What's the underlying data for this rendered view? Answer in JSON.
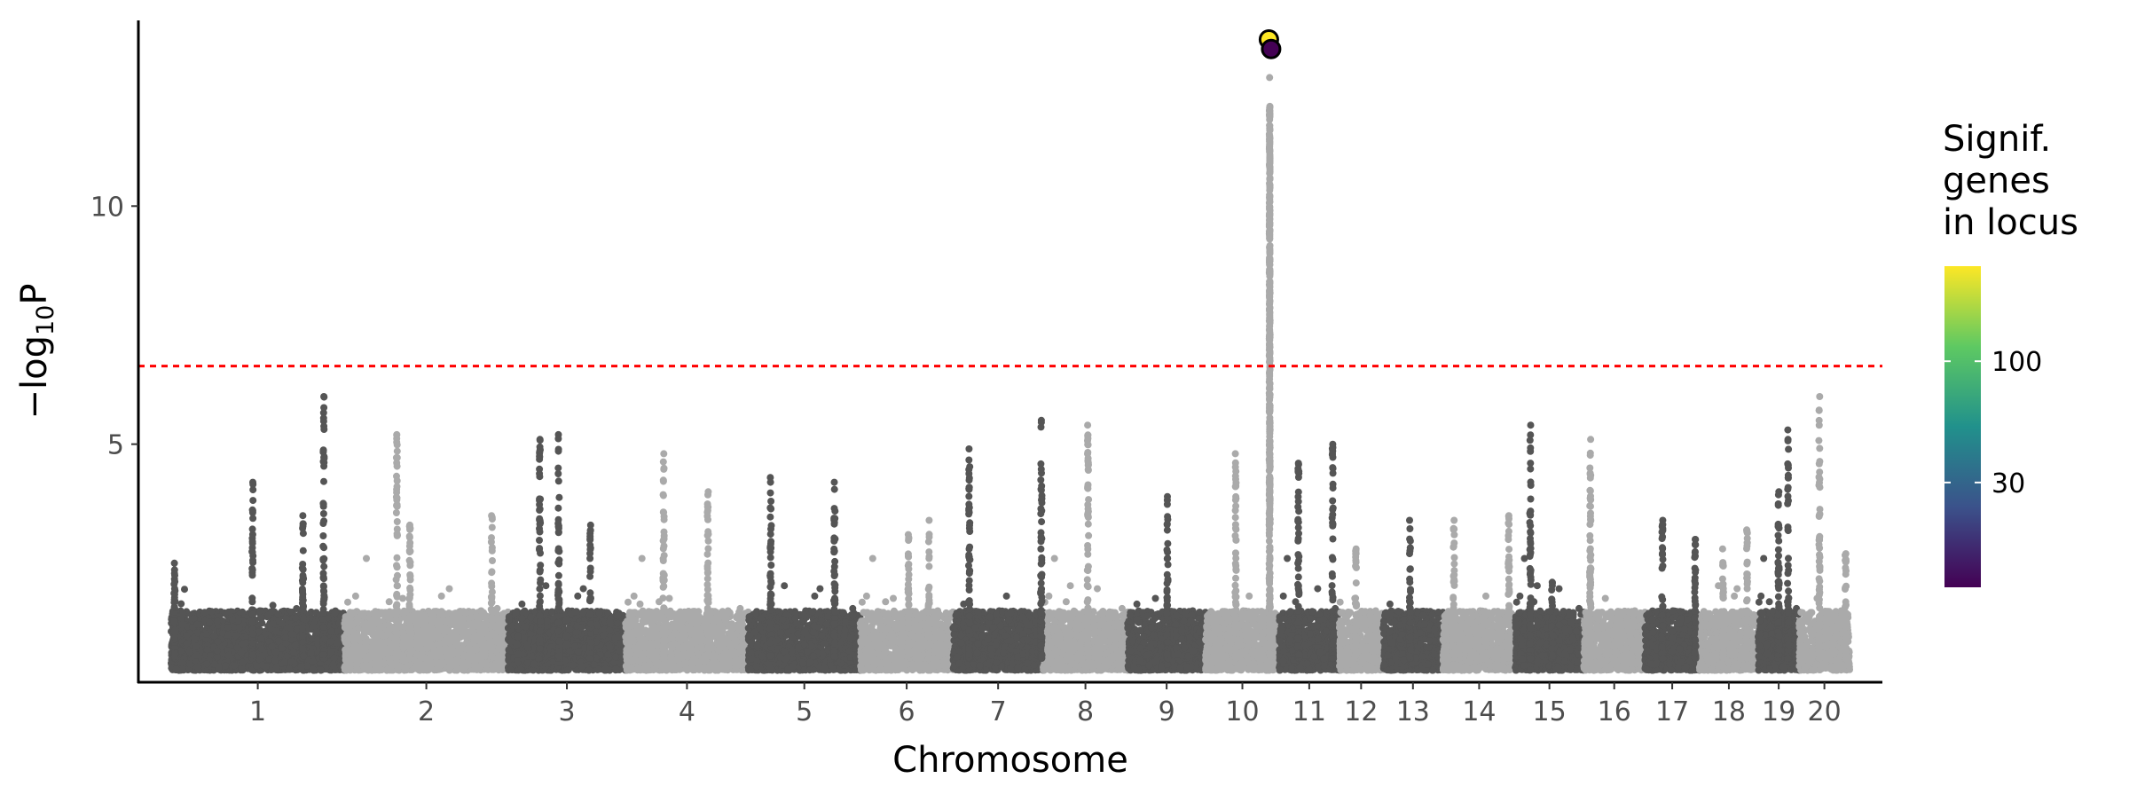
{
  "chart_data": {
    "type": "scatter",
    "title": "",
    "xlabel": "Chromosome",
    "ylabel": "−log10P",
    "ylabel_main": "−log",
    "ylabel_sub": "10",
    "ylabel_end": "P",
    "ylim": [
      0,
      13.9
    ],
    "yticks": [
      5,
      10
    ],
    "significance_threshold": 6.64,
    "threshold_color": "#ff0000",
    "colors": {
      "dark": "#555555",
      "light": "#aaaaaa"
    },
    "chromosomes": [
      {
        "label": "1",
        "length_mb": 254
      },
      {
        "label": "2",
        "length_mb": 240
      },
      {
        "label": "3",
        "length_mb": 172
      },
      {
        "label": "4",
        "length_mb": 180
      },
      {
        "label": "5",
        "length_mb": 164
      },
      {
        "label": "6",
        "length_mb": 136
      },
      {
        "label": "7",
        "length_mb": 132
      },
      {
        "label": "8",
        "length_mb": 124
      },
      {
        "label": "9",
        "length_mb": 114
      },
      {
        "label": "10",
        "length_mb": 108
      },
      {
        "label": "11",
        "length_mb": 88
      },
      {
        "label": "12",
        "length_mb": 64
      },
      {
        "label": "13",
        "length_mb": 88
      },
      {
        "label": "14",
        "length_mb": 106
      },
      {
        "label": "15",
        "length_mb": 100
      },
      {
        "label": "16",
        "length_mb": 90
      },
      {
        "label": "17",
        "length_mb": 80
      },
      {
        "label": "18",
        "length_mb": 86
      },
      {
        "label": "19",
        "length_mb": 60
      },
      {
        "label": "20",
        "length_mb": 74
      }
    ],
    "peaks": [
      [
        1,
        0.02,
        2.5
      ],
      [
        1,
        0.47,
        4.2
      ],
      [
        1,
        0.76,
        3.5
      ],
      [
        1,
        0.88,
        6.0
      ],
      [
        2,
        0.32,
        5.2
      ],
      [
        2,
        0.4,
        3.3
      ],
      [
        2,
        0.9,
        3.5
      ],
      [
        3,
        0.27,
        5.1
      ],
      [
        3,
        0.43,
        5.2
      ],
      [
        3,
        0.7,
        3.3
      ],
      [
        4,
        0.31,
        4.8
      ],
      [
        4,
        0.67,
        4.0
      ],
      [
        5,
        0.2,
        4.3
      ],
      [
        5,
        0.77,
        4.2
      ],
      [
        6,
        0.52,
        3.1
      ],
      [
        6,
        0.74,
        3.4
      ],
      [
        7,
        0.18,
        4.9
      ],
      [
        7,
        0.98,
        5.5
      ],
      [
        8,
        0.53,
        5.4
      ],
      [
        9,
        0.51,
        3.9
      ],
      [
        10,
        0.41,
        4.8
      ],
      [
        10,
        0.87,
        12.7
      ],
      [
        11,
        0.32,
        4.6
      ],
      [
        11,
        0.89,
        5.0
      ],
      [
        12,
        0.38,
        2.8
      ],
      [
        13,
        0.45,
        3.4
      ],
      [
        14,
        0.15,
        3.4
      ],
      [
        14,
        0.91,
        3.5
      ],
      [
        15,
        0.22,
        5.4
      ],
      [
        15,
        0.54,
        2.1
      ],
      [
        16,
        0.11,
        5.1
      ],
      [
        17,
        0.32,
        3.4
      ],
      [
        17,
        0.92,
        3.0
      ],
      [
        18,
        0.4,
        2.8
      ],
      [
        18,
        0.81,
        3.2
      ],
      [
        19,
        0.73,
        5.3
      ],
      [
        19,
        0.5,
        4.0
      ],
      [
        20,
        0.4,
        6.0
      ],
      [
        20,
        0.92,
        2.7
      ]
    ],
    "highlighted": [
      {
        "chromosome": "10",
        "position_frac": 0.86,
        "y": 13.5,
        "signif_genes": 257,
        "color": "#fde725"
      },
      {
        "chromosome": "10",
        "position_frac": 0.89,
        "y": 13.3,
        "signif_genes": 10,
        "color": "#440154"
      }
    ],
    "legend": {
      "title_lines": [
        "Signif.",
        "genes",
        "in locus"
      ],
      "scale": "log",
      "range": [
        10.6,
        257
      ],
      "ticks": [
        {
          "value": 30,
          "label": "30"
        },
        {
          "value": 100,
          "label": "100"
        }
      ],
      "colormap": [
        "#440154",
        "#3b528b",
        "#21918c",
        "#5ec962",
        "#fde725"
      ],
      "placement": "right"
    }
  }
}
